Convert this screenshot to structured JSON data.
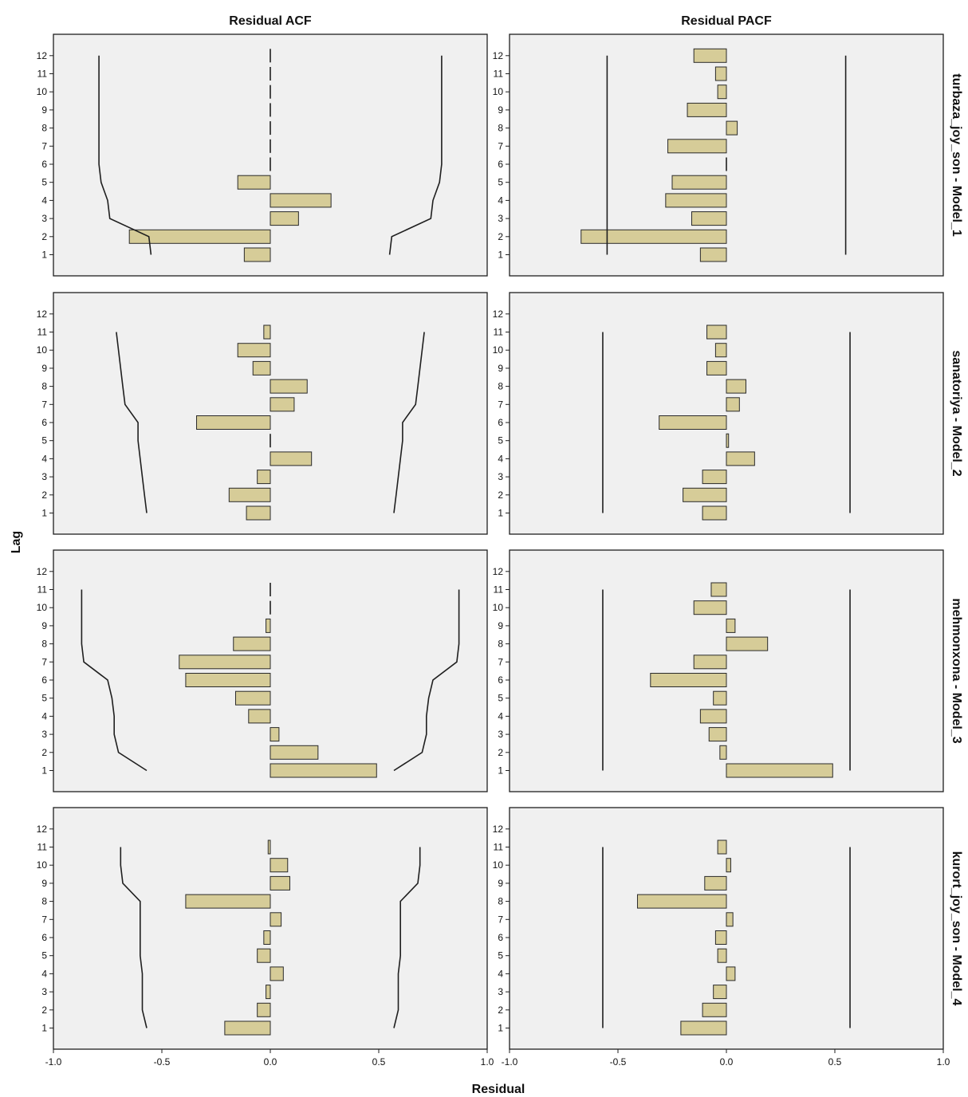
{
  "col_titles": [
    "Residual ACF",
    "Residual PACF"
  ],
  "xlabel": "Residual",
  "ylabel": "Lag",
  "colors": {
    "bar_fill": "#d6cc98",
    "bar_stroke": "#2a2a2a",
    "panel_bg": "#f0f0f0",
    "line": "#1f1f1f"
  },
  "chart_data": {
    "type": "bar",
    "orientation": "horizontal",
    "xlim": [
      -1.0,
      1.0
    ],
    "xticks": [
      "-1.0",
      "-0.5",
      "0.0",
      "0.5",
      "1.0"
    ],
    "lags": [
      "1",
      "2",
      "3",
      "4",
      "5",
      "6",
      "7",
      "8",
      "9",
      "10",
      "11",
      "12"
    ],
    "grid": false,
    "models": [
      {
        "label": "turbaza_joy_son - Model_1",
        "acf": [
          -0.12,
          -0.65,
          0.13,
          0.28,
          -0.15,
          0.0,
          0.0,
          0.0,
          0.0,
          0.0,
          0.0,
          0.0
        ],
        "acf_upper": [
          0.55,
          0.56,
          0.74,
          0.75,
          0.78,
          0.79,
          0.79,
          0.79,
          0.79,
          0.79,
          0.79,
          0.79
        ],
        "acf_lower": [
          -0.55,
          -0.56,
          -0.74,
          -0.75,
          -0.78,
          -0.79,
          -0.79,
          -0.79,
          -0.79,
          -0.79,
          -0.79,
          -0.79
        ],
        "pacf": [
          -0.12,
          -0.67,
          -0.16,
          -0.28,
          -0.25,
          0.0,
          -0.27,
          0.05,
          -0.18,
          -0.04,
          -0.05,
          -0.15
        ],
        "pacf_limit": 0.55
      },
      {
        "label": "sanatoriya - Model_2",
        "acf": [
          -0.11,
          -0.19,
          -0.06,
          0.19,
          0.0,
          -0.34,
          0.11,
          0.17,
          -0.08,
          -0.15,
          -0.03,
          null
        ],
        "acf_upper": [
          0.57,
          0.58,
          0.59,
          0.6,
          0.61,
          0.61,
          0.67,
          0.68,
          0.69,
          0.7,
          0.71,
          null
        ],
        "acf_lower": [
          -0.57,
          -0.58,
          -0.59,
          -0.6,
          -0.61,
          -0.61,
          -0.67,
          -0.68,
          -0.69,
          -0.7,
          -0.71,
          null
        ],
        "pacf": [
          -0.11,
          -0.2,
          -0.11,
          0.13,
          0.01,
          -0.31,
          0.06,
          0.09,
          -0.09,
          -0.05,
          -0.09,
          null
        ],
        "pacf_limit": 0.57
      },
      {
        "label": "mehmonxona - Model_3",
        "acf": [
          0.49,
          0.22,
          0.04,
          -0.1,
          -0.16,
          -0.39,
          -0.42,
          -0.17,
          -0.02,
          0.0,
          0.0,
          null
        ],
        "acf_upper": [
          0.57,
          0.7,
          0.72,
          0.72,
          0.73,
          0.75,
          0.86,
          0.87,
          0.87,
          0.87,
          0.87,
          null
        ],
        "acf_lower": [
          -0.57,
          -0.7,
          -0.72,
          -0.72,
          -0.73,
          -0.75,
          -0.86,
          -0.87,
          -0.87,
          -0.87,
          -0.87,
          null
        ],
        "pacf": [
          0.49,
          -0.03,
          -0.08,
          -0.12,
          -0.06,
          -0.35,
          -0.15,
          0.19,
          0.04,
          -0.15,
          -0.07,
          null
        ],
        "pacf_limit": 0.57
      },
      {
        "label": "kurort_joy_son - Model_4",
        "acf": [
          -0.21,
          -0.06,
          -0.02,
          0.06,
          -0.06,
          -0.03,
          0.05,
          -0.39,
          0.09,
          0.08,
          -0.01,
          null
        ],
        "acf_upper": [
          0.57,
          0.59,
          0.59,
          0.59,
          0.6,
          0.6,
          0.6,
          0.6,
          0.68,
          0.69,
          0.69,
          null
        ],
        "acf_lower": [
          -0.57,
          -0.59,
          -0.59,
          -0.59,
          -0.6,
          -0.6,
          -0.6,
          -0.6,
          -0.68,
          -0.69,
          -0.69,
          null
        ],
        "pacf": [
          -0.21,
          -0.11,
          -0.06,
          0.04,
          -0.04,
          -0.05,
          0.03,
          -0.41,
          -0.1,
          0.02,
          -0.04,
          null
        ],
        "pacf_limit": 0.57
      }
    ]
  }
}
